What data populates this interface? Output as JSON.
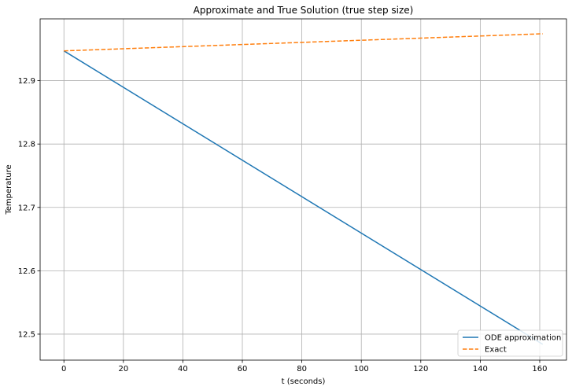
{
  "chart_data": {
    "type": "line",
    "title": "Approximate and True Solution (true step size)",
    "xlabel": "t (seconds)",
    "ylabel": "Temperature",
    "xlim": [
      -8,
      169
    ],
    "ylim": [
      12.459,
      12.9975
    ],
    "xticks": [
      0,
      20,
      40,
      60,
      80,
      100,
      120,
      140,
      160
    ],
    "yticks": [
      12.5,
      12.6,
      12.7,
      12.8,
      12.9
    ],
    "ytick_labels": [
      "12.5",
      "12.6",
      "12.7",
      "12.8",
      "12.9"
    ],
    "grid": true,
    "legend_position": "lower-right",
    "series": [
      {
        "name": "ODE approximation",
        "color": "#1f77b4",
        "style": "solid",
        "x": [
          0,
          161
        ],
        "y": [
          12.947,
          12.484
        ]
      },
      {
        "name": "Exact",
        "color": "#ff7f0e",
        "style": "dashed",
        "x": [
          0,
          161
        ],
        "y": [
          12.947,
          12.974
        ]
      }
    ]
  }
}
